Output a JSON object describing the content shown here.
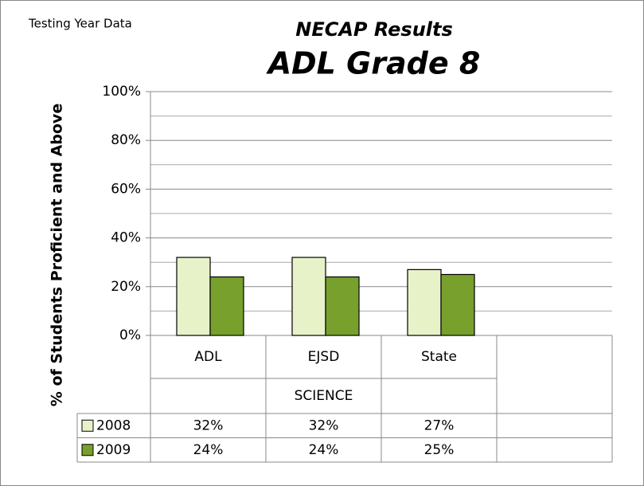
{
  "chart_data": {
    "type": "bar",
    "corner_note": "Testing Year Data",
    "title": "NECAP Results",
    "subtitle": "ADL Grade 8",
    "y_label": "% of Students Proficient and Above",
    "categories": [
      "ADL",
      "EJSD",
      "State",
      null
    ],
    "group": "SCIENCE",
    "series": [
      {
        "name": "2008",
        "color": "#e7f2c9",
        "values": [
          32,
          32,
          27,
          null
        ],
        "value_labels": [
          "32%",
          "32%",
          "27%",
          null
        ]
      },
      {
        "name": "2009",
        "color": "#77a02c",
        "values": [
          24,
          24,
          25,
          null
        ],
        "value_labels": [
          "24%",
          "24%",
          "25%",
          null
        ]
      }
    ],
    "ylim": [
      0,
      100
    ],
    "yticks": [
      {
        "value": 0,
        "label": "0%"
      },
      {
        "value": 20,
        "label": "20%"
      },
      {
        "value": 40,
        "label": "40%"
      },
      {
        "value": 60,
        "label": "60%"
      },
      {
        "value": 80,
        "label": "80%"
      },
      {
        "value": 100,
        "label": "100%"
      }
    ],
    "minor_yticks": [
      10,
      30,
      50,
      70,
      90
    ],
    "grid": true,
    "data_table": true
  }
}
